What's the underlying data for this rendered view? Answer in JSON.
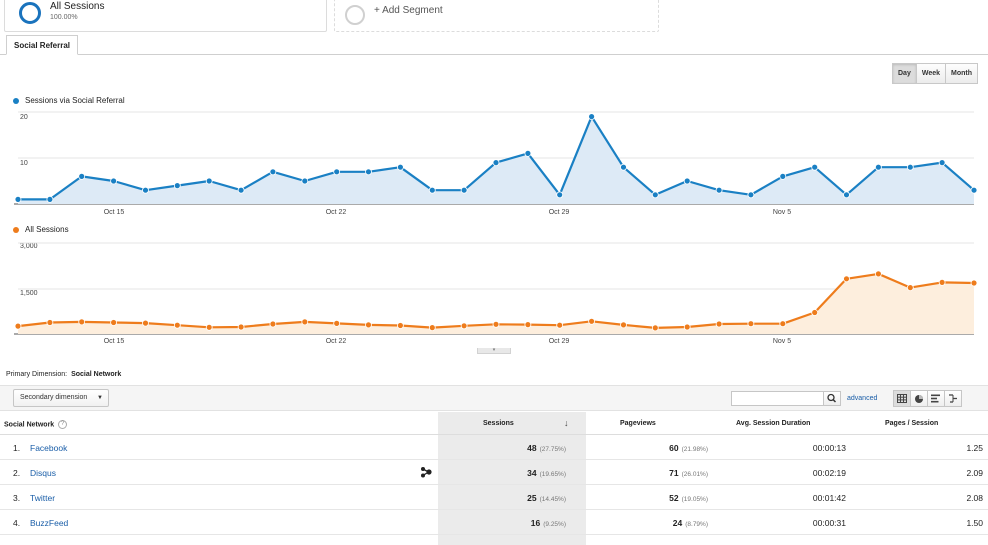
{
  "segments": {
    "all_sessions": {
      "name": "All Sessions",
      "percent": "100.00%"
    },
    "add_segment": "+ Add Segment"
  },
  "tabs": [
    {
      "label": "Social Referral"
    }
  ],
  "period_buttons": [
    "Day",
    "Week",
    "Month"
  ],
  "colors": {
    "series1": "#1a80c4",
    "series2": "#ee7c1c",
    "link": "#1a5ea8"
  },
  "chart_data": [
    {
      "type": "area",
      "legend": "Sessions via Social Referral",
      "x_ticks": [
        "Oct 15",
        "Oct 22",
        "Oct 29",
        "Nov 5"
      ],
      "y_ticks": [
        "20",
        "10"
      ],
      "ylim": [
        0,
        20
      ],
      "series": [
        {
          "name": "Sessions via Social Referral",
          "values": [
            1,
            1,
            6,
            5,
            3,
            4,
            5,
            3,
            7,
            5,
            7,
            7,
            8,
            3,
            3,
            9,
            11,
            2,
            19,
            8,
            2,
            5,
            3,
            2,
            6,
            8,
            2,
            8,
            8,
            9,
            3
          ]
        }
      ]
    },
    {
      "type": "area",
      "legend": "All Sessions",
      "x_ticks": [
        "Oct 15",
        "Oct 22",
        "Oct 29",
        "Nov 5"
      ],
      "y_ticks": [
        "3,000",
        "1,500"
      ],
      "ylim": [
        0,
        3000
      ],
      "series": [
        {
          "name": "All Sessions",
          "values": [
            260,
            380,
            400,
            380,
            360,
            290,
            220,
            230,
            330,
            400,
            350,
            300,
            280,
            210,
            270,
            320,
            310,
            290,
            420,
            300,
            200,
            230,
            330,
            340,
            340,
            710,
            1820,
            1980,
            1530,
            1700,
            1680
          ]
        }
      ]
    }
  ],
  "primary_dimension": {
    "label": "Primary Dimension:",
    "value": "Social Network"
  },
  "secondary_dimension": "Secondary dimension",
  "advanced_link": "advanced",
  "table": {
    "headers": {
      "network": "Social Network",
      "sessions": "Sessions",
      "pageviews": "Pageviews",
      "avg_duration": "Avg. Session Duration",
      "pages_session": "Pages / Session"
    },
    "rows": [
      {
        "idx": "1.",
        "name": "Facebook",
        "sessions": "48",
        "sessions_pct": "(27.75%)",
        "pageviews": "60",
        "pageviews_pct": "(21.98%)",
        "duration": "00:00:13",
        "pages": "1.25"
      },
      {
        "idx": "2.",
        "name": "Disqus",
        "sessions": "34",
        "sessions_pct": "(19.65%)",
        "pageviews": "71",
        "pageviews_pct": "(26.01%)",
        "duration": "00:02:19",
        "pages": "2.09"
      },
      {
        "idx": "3.",
        "name": "Twitter",
        "sessions": "25",
        "sessions_pct": "(14.45%)",
        "pageviews": "52",
        "pageviews_pct": "(19.05%)",
        "duration": "00:01:42",
        "pages": "2.08"
      },
      {
        "idx": "4.",
        "name": "BuzzFeed",
        "sessions": "16",
        "sessions_pct": "(9.25%)",
        "pageviews": "24",
        "pageviews_pct": "(8.79%)",
        "duration": "00:00:31",
        "pages": "1.50"
      }
    ]
  }
}
